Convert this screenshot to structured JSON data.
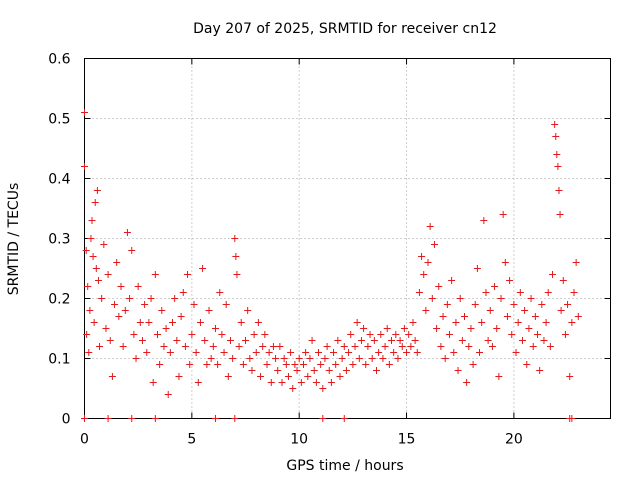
{
  "chart_data": {
    "type": "scatter",
    "title": "Day 207 of 2025, SRMTID for receiver cn12",
    "xlabel": "GPS time / hours",
    "ylabel": "SRMTID / TECUs",
    "xlim": [
      0,
      24.5
    ],
    "ylim": [
      0,
      0.6
    ],
    "xticks": [
      0,
      5,
      10,
      15,
      20
    ],
    "xtick_labels": [
      "0",
      "5",
      "10",
      "15",
      "20"
    ],
    "yticks": [
      0,
      0.1,
      0.2,
      0.3,
      0.4,
      0.5,
      0.6
    ],
    "ytick_labels": [
      "0",
      "0.1",
      "0.2",
      "0.3",
      "0.4",
      "0.5",
      "0.6"
    ],
    "grid": true,
    "marker": "+",
    "color": "#e41a1c",
    "series": [
      {
        "name": "SRMTID",
        "points": [
          [
            0.0,
            0.51
          ],
          [
            0.0,
            0.42
          ],
          [
            0.08,
            0.28
          ],
          [
            0.1,
            0.14
          ],
          [
            0.15,
            0.22
          ],
          [
            0.2,
            0.11
          ],
          [
            0.25,
            0.18
          ],
          [
            0.3,
            0.3
          ],
          [
            0.35,
            0.33
          ],
          [
            0.4,
            0.27
          ],
          [
            0.45,
            0.16
          ],
          [
            0.5,
            0.36
          ],
          [
            0.55,
            0.25
          ],
          [
            0.6,
            0.38
          ],
          [
            0.65,
            0.23
          ],
          [
            0.7,
            0.12
          ],
          [
            0.8,
            0.2
          ],
          [
            0.9,
            0.29
          ],
          [
            1.0,
            0.15
          ],
          [
            1.1,
            0.24
          ],
          [
            1.2,
            0.13
          ],
          [
            1.3,
            0.07
          ],
          [
            1.4,
            0.19
          ],
          [
            1.5,
            0.26
          ],
          [
            1.6,
            0.17
          ],
          [
            1.7,
            0.22
          ],
          [
            1.8,
            0.12
          ],
          [
            1.9,
            0.18
          ],
          [
            2.0,
            0.31
          ],
          [
            2.1,
            0.2
          ],
          [
            2.2,
            0.28
          ],
          [
            2.3,
            0.14
          ],
          [
            2.4,
            0.1
          ],
          [
            2.5,
            0.22
          ],
          [
            2.6,
            0.16
          ],
          [
            2.7,
            0.13
          ],
          [
            2.8,
            0.19
          ],
          [
            2.9,
            0.11
          ],
          [
            3.0,
            0.16
          ],
          [
            3.1,
            0.2
          ],
          [
            3.2,
            0.06
          ],
          [
            3.3,
            0.24
          ],
          [
            3.4,
            0.14
          ],
          [
            3.5,
            0.09
          ],
          [
            3.6,
            0.18
          ],
          [
            3.7,
            0.12
          ],
          [
            3.8,
            0.15
          ],
          [
            3.9,
            0.04
          ],
          [
            4.0,
            0.11
          ],
          [
            4.1,
            0.16
          ],
          [
            4.2,
            0.2
          ],
          [
            4.3,
            0.13
          ],
          [
            4.4,
            0.07
          ],
          [
            4.5,
            0.17
          ],
          [
            4.6,
            0.21
          ],
          [
            4.7,
            0.12
          ],
          [
            4.8,
            0.24
          ],
          [
            4.9,
            0.09
          ],
          [
            5.0,
            0.14
          ],
          [
            5.1,
            0.19
          ],
          [
            5.2,
            0.11
          ],
          [
            5.3,
            0.06
          ],
          [
            5.4,
            0.16
          ],
          [
            5.5,
            0.25
          ],
          [
            5.6,
            0.13
          ],
          [
            5.7,
            0.09
          ],
          [
            5.8,
            0.18
          ],
          [
            5.9,
            0.1
          ],
          [
            6.0,
            0.12
          ],
          [
            6.1,
            0.15
          ],
          [
            6.2,
            0.09
          ],
          [
            6.3,
            0.21
          ],
          [
            6.4,
            0.14
          ],
          [
            6.5,
            0.11
          ],
          [
            6.6,
            0.19
          ],
          [
            6.7,
            0.07
          ],
          [
            6.8,
            0.13
          ],
          [
            6.9,
            0.1
          ],
          [
            7.0,
            0.3
          ],
          [
            7.05,
            0.27
          ],
          [
            7.1,
            0.24
          ],
          [
            7.2,
            0.12
          ],
          [
            7.3,
            0.16
          ],
          [
            7.4,
            0.09
          ],
          [
            7.5,
            0.13
          ],
          [
            7.6,
            0.18
          ],
          [
            7.7,
            0.1
          ],
          [
            7.8,
            0.08
          ],
          [
            7.9,
            0.14
          ],
          [
            8.0,
            0.11
          ],
          [
            8.1,
            0.16
          ],
          [
            8.2,
            0.07
          ],
          [
            8.3,
            0.12
          ],
          [
            8.4,
            0.14
          ],
          [
            8.5,
            0.09
          ],
          [
            8.6,
            0.11
          ],
          [
            8.7,
            0.06
          ],
          [
            8.8,
            0.12
          ],
          [
            8.9,
            0.1
          ],
          [
            9.0,
            0.08
          ],
          [
            9.1,
            0.12
          ],
          [
            9.2,
            0.06
          ],
          [
            9.3,
            0.1
          ],
          [
            9.4,
            0.09
          ],
          [
            9.5,
            0.07
          ],
          [
            9.6,
            0.11
          ],
          [
            9.7,
            0.05
          ],
          [
            9.8,
            0.09
          ],
          [
            9.9,
            0.08
          ],
          [
            10.0,
            0.1
          ],
          [
            10.1,
            0.06
          ],
          [
            10.2,
            0.09
          ],
          [
            10.3,
            0.11
          ],
          [
            10.4,
            0.07
          ],
          [
            10.5,
            0.1
          ],
          [
            10.6,
            0.13
          ],
          [
            10.7,
            0.08
          ],
          [
            10.8,
            0.06
          ],
          [
            10.9,
            0.11
          ],
          [
            11.0,
            0.09
          ],
          [
            11.1,
            0.05
          ],
          [
            11.2,
            0.1
          ],
          [
            11.3,
            0.12
          ],
          [
            11.4,
            0.08
          ],
          [
            11.5,
            0.06
          ],
          [
            11.6,
            0.11
          ],
          [
            11.7,
            0.09
          ],
          [
            11.8,
            0.13
          ],
          [
            11.9,
            0.07
          ],
          [
            12.0,
            0.1
          ],
          [
            12.1,
            0.12
          ],
          [
            12.2,
            0.08
          ],
          [
            12.3,
            0.11
          ],
          [
            12.4,
            0.14
          ],
          [
            12.5,
            0.09
          ],
          [
            12.6,
            0.12
          ],
          [
            12.7,
            0.16
          ],
          [
            12.8,
            0.1
          ],
          [
            12.9,
            0.13
          ],
          [
            13.0,
            0.15
          ],
          [
            13.1,
            0.09
          ],
          [
            13.2,
            0.12
          ],
          [
            13.3,
            0.14
          ],
          [
            13.4,
            0.1
          ],
          [
            13.5,
            0.13
          ],
          [
            13.6,
            0.08
          ],
          [
            13.7,
            0.11
          ],
          [
            13.8,
            0.14
          ],
          [
            13.9,
            0.1
          ],
          [
            14.0,
            0.12
          ],
          [
            14.1,
            0.15
          ],
          [
            14.2,
            0.09
          ],
          [
            14.3,
            0.13
          ],
          [
            14.4,
            0.11
          ],
          [
            14.5,
            0.14
          ],
          [
            14.6,
            0.1
          ],
          [
            14.7,
            0.13
          ],
          [
            14.8,
            0.12
          ],
          [
            14.9,
            0.15
          ],
          [
            15.0,
            0.11
          ],
          [
            15.1,
            0.14
          ],
          [
            15.2,
            0.12
          ],
          [
            15.3,
            0.16
          ],
          [
            15.4,
            0.13
          ],
          [
            15.5,
            0.11
          ],
          [
            15.6,
            0.21
          ],
          [
            15.7,
            0.27
          ],
          [
            15.8,
            0.24
          ],
          [
            15.9,
            0.18
          ],
          [
            16.0,
            0.26
          ],
          [
            16.1,
            0.32
          ],
          [
            16.2,
            0.2
          ],
          [
            16.3,
            0.29
          ],
          [
            16.4,
            0.15
          ],
          [
            16.5,
            0.22
          ],
          [
            16.6,
            0.12
          ],
          [
            16.7,
            0.17
          ],
          [
            16.8,
            0.1
          ],
          [
            16.9,
            0.19
          ],
          [
            17.0,
            0.14
          ],
          [
            17.1,
            0.23
          ],
          [
            17.2,
            0.11
          ],
          [
            17.3,
            0.16
          ],
          [
            17.4,
            0.08
          ],
          [
            17.5,
            0.2
          ],
          [
            17.6,
            0.13
          ],
          [
            17.7,
            0.17
          ],
          [
            17.8,
            0.06
          ],
          [
            17.9,
            0.12
          ],
          [
            18.0,
            0.15
          ],
          [
            18.1,
            0.09
          ],
          [
            18.2,
            0.19
          ],
          [
            18.3,
            0.25
          ],
          [
            18.4,
            0.11
          ],
          [
            18.5,
            0.16
          ],
          [
            18.6,
            0.33
          ],
          [
            18.7,
            0.21
          ],
          [
            18.8,
            0.13
          ],
          [
            18.9,
            0.18
          ],
          [
            19.0,
            0.12
          ],
          [
            19.1,
            0.22
          ],
          [
            19.2,
            0.15
          ],
          [
            19.3,
            0.07
          ],
          [
            19.4,
            0.2
          ],
          [
            19.5,
            0.34
          ],
          [
            19.6,
            0.26
          ],
          [
            19.7,
            0.17
          ],
          [
            19.8,
            0.23
          ],
          [
            19.9,
            0.14
          ],
          [
            20.0,
            0.19
          ],
          [
            20.1,
            0.11
          ],
          [
            20.2,
            0.16
          ],
          [
            20.3,
            0.21
          ],
          [
            20.4,
            0.13
          ],
          [
            20.5,
            0.18
          ],
          [
            20.6,
            0.09
          ],
          [
            20.7,
            0.15
          ],
          [
            20.8,
            0.2
          ],
          [
            20.9,
            0.12
          ],
          [
            21.0,
            0.17
          ],
          [
            21.1,
            0.14
          ],
          [
            21.2,
            0.08
          ],
          [
            21.3,
            0.19
          ],
          [
            21.4,
            0.13
          ],
          [
            21.5,
            0.16
          ],
          [
            21.6,
            0.21
          ],
          [
            21.7,
            0.12
          ],
          [
            21.8,
            0.24
          ],
          [
            21.9,
            0.49
          ],
          [
            21.95,
            0.47
          ],
          [
            22.0,
            0.44
          ],
          [
            22.05,
            0.42
          ],
          [
            22.1,
            0.38
          ],
          [
            22.15,
            0.34
          ],
          [
            22.2,
            0.18
          ],
          [
            22.3,
            0.23
          ],
          [
            22.4,
            0.14
          ],
          [
            22.5,
            0.19
          ],
          [
            22.6,
            0.07
          ],
          [
            22.7,
            0.16
          ],
          [
            22.8,
            0.21
          ],
          [
            22.9,
            0.26
          ],
          [
            23.0,
            0.17
          ],
          [
            0.0,
            0.0
          ],
          [
            1.1,
            0.0
          ],
          [
            2.2,
            0.0
          ],
          [
            3.3,
            0.0
          ],
          [
            6.1,
            0.0
          ],
          [
            7.0,
            0.0
          ],
          [
            11.1,
            0.0
          ],
          [
            12.1,
            0.0
          ],
          [
            22.6,
            0.0
          ],
          [
            22.7,
            0.0
          ]
        ]
      }
    ]
  }
}
